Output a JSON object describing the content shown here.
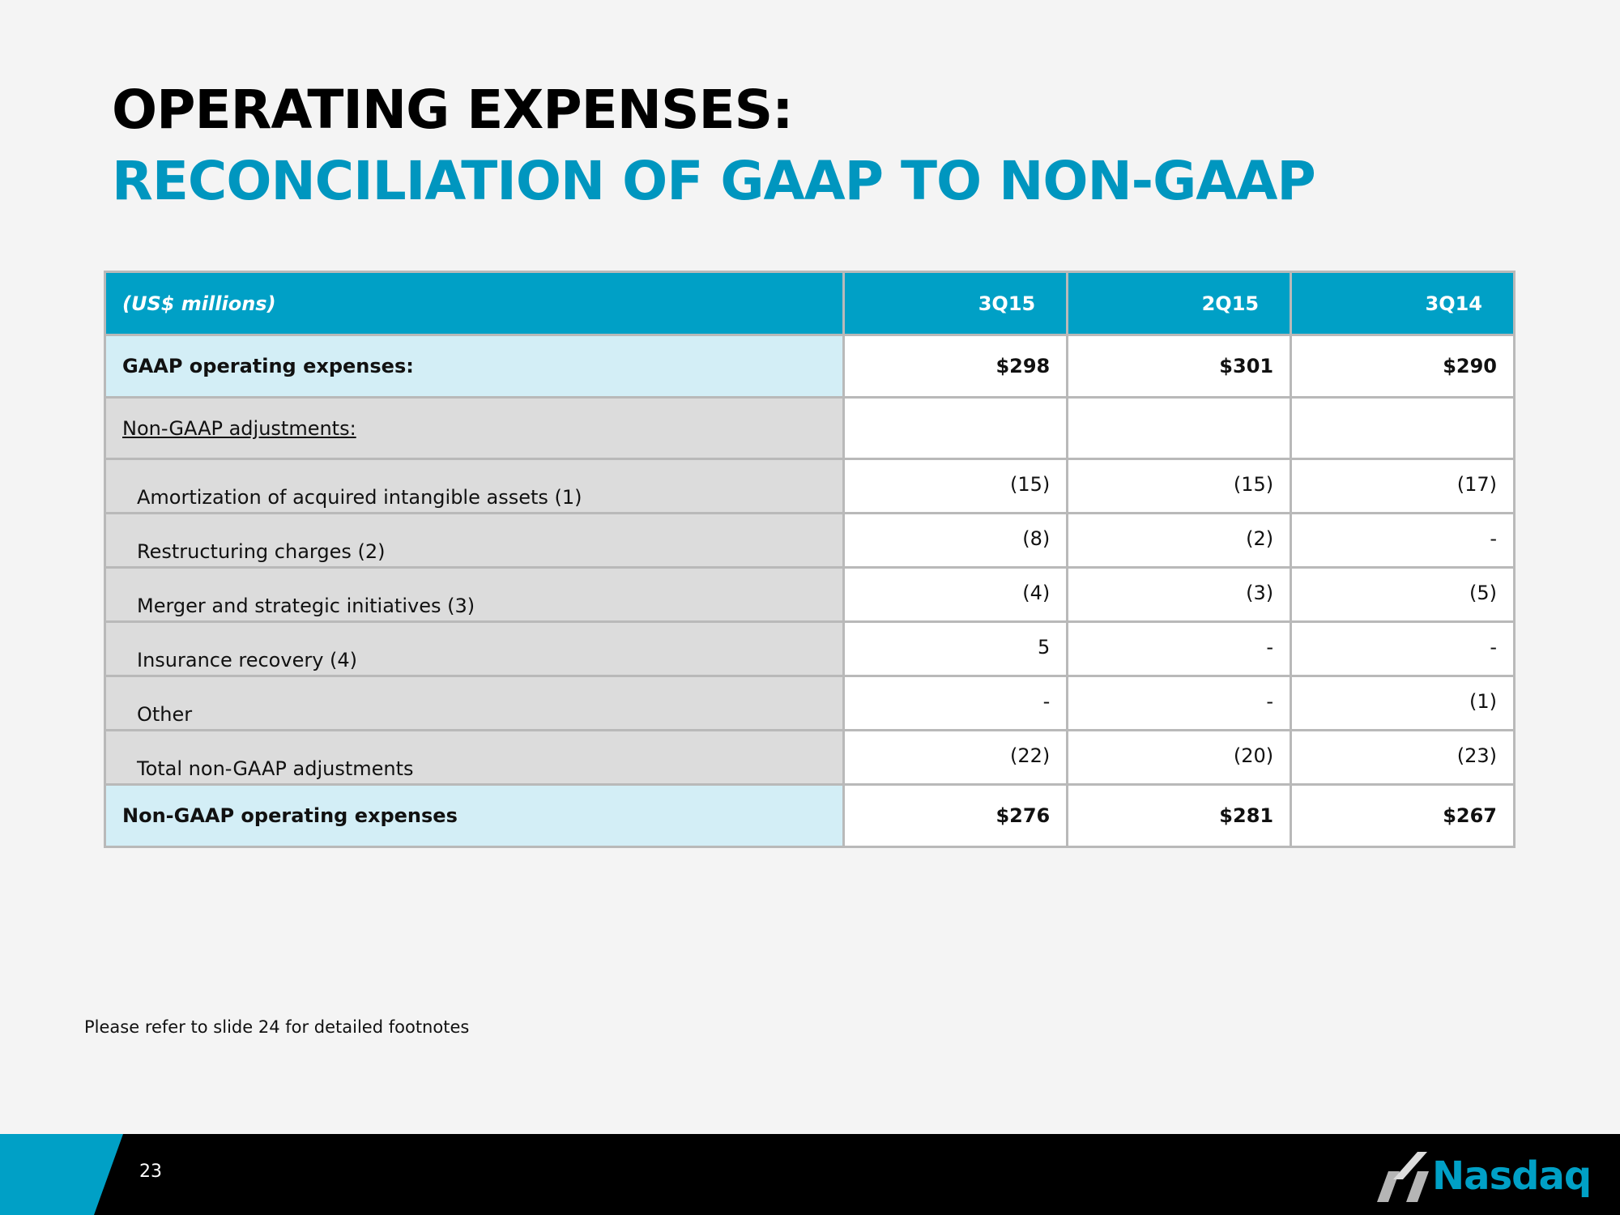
{
  "title": {
    "line1": "OPERATING EXPENSES:",
    "line2": "RECONCILIATION OF GAAP TO NON-GAAP"
  },
  "table": {
    "header": {
      "label": "(US$ millions)",
      "cols": [
        "3Q15",
        "2Q15",
        "3Q14"
      ]
    },
    "gaap": {
      "label": "GAAP operating expenses:",
      "values": [
        "$298",
        "$301",
        "$290"
      ]
    },
    "adj_header": {
      "label": "Non-GAAP adjustments:"
    },
    "adjustments": [
      {
        "label": "Amortization of acquired intangible assets (1)",
        "values": [
          "(15)",
          "(15)",
          "(17)"
        ]
      },
      {
        "label": "Restructuring charges (2)",
        "values": [
          "(8)",
          "(2)",
          "-"
        ]
      },
      {
        "label": "Merger and strategic initiatives (3)",
        "values": [
          "(4)",
          "(3)",
          "(5)"
        ]
      },
      {
        "label": "Insurance recovery (4)",
        "values": [
          "5",
          "-",
          "-"
        ]
      },
      {
        "label": "Other",
        "values": [
          "-",
          "-",
          "(1)"
        ]
      },
      {
        "label": "Total non-GAAP adjustments",
        "values": [
          "(22)",
          "(20)",
          "(23)"
        ]
      }
    ],
    "nongaap": {
      "label": "Non-GAAP operating expenses",
      "values": [
        "$276",
        "$281",
        "$267"
      ]
    }
  },
  "footnote": "Please refer to slide 24 for detailed footnotes",
  "footer": {
    "page_number": "23",
    "logo_text": "Nasdaq"
  },
  "colors": {
    "accent": "#00a0c6",
    "title_blue": "#0096bf",
    "highlight_cell": "#d3eef6",
    "label_gray": "#dcdcdc",
    "footer": "#000000"
  }
}
